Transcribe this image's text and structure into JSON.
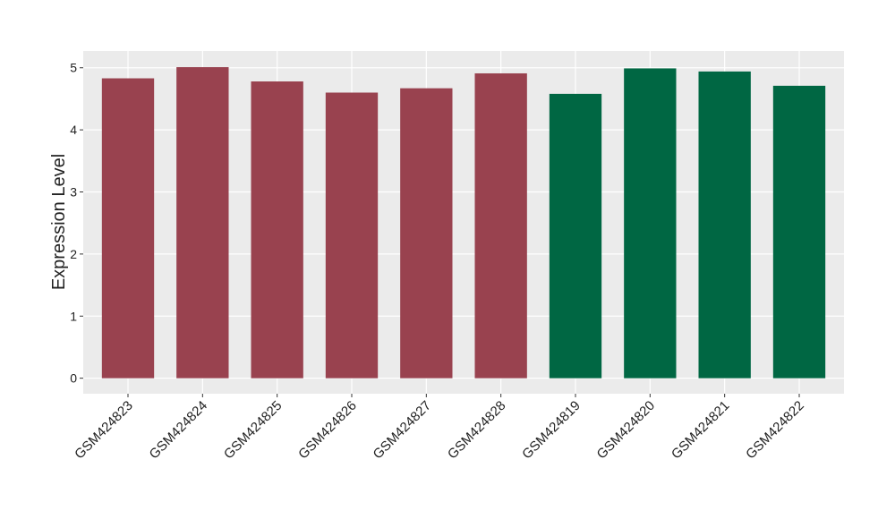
{
  "chart_data": {
    "type": "bar",
    "y_label": "Expression Level",
    "categories": [
      "GSM424823",
      "GSM424824",
      "GSM424825",
      "GSM424826",
      "GSM424827",
      "GSM424828",
      "GSM424819",
      "GSM424820",
      "GSM424821",
      "GSM424822"
    ],
    "values": [
      4.83,
      5.01,
      4.78,
      4.6,
      4.67,
      4.91,
      4.58,
      4.99,
      4.94,
      4.71
    ],
    "colors": [
      "#99424f",
      "#99424f",
      "#99424f",
      "#99424f",
      "#99424f",
      "#99424f",
      "#006743",
      "#006743",
      "#006743",
      "#006743"
    ],
    "ylim": [
      -0.25,
      5.27
    ],
    "yticks": [
      0,
      1,
      2,
      3,
      4,
      5
    ],
    "grid": true
  }
}
